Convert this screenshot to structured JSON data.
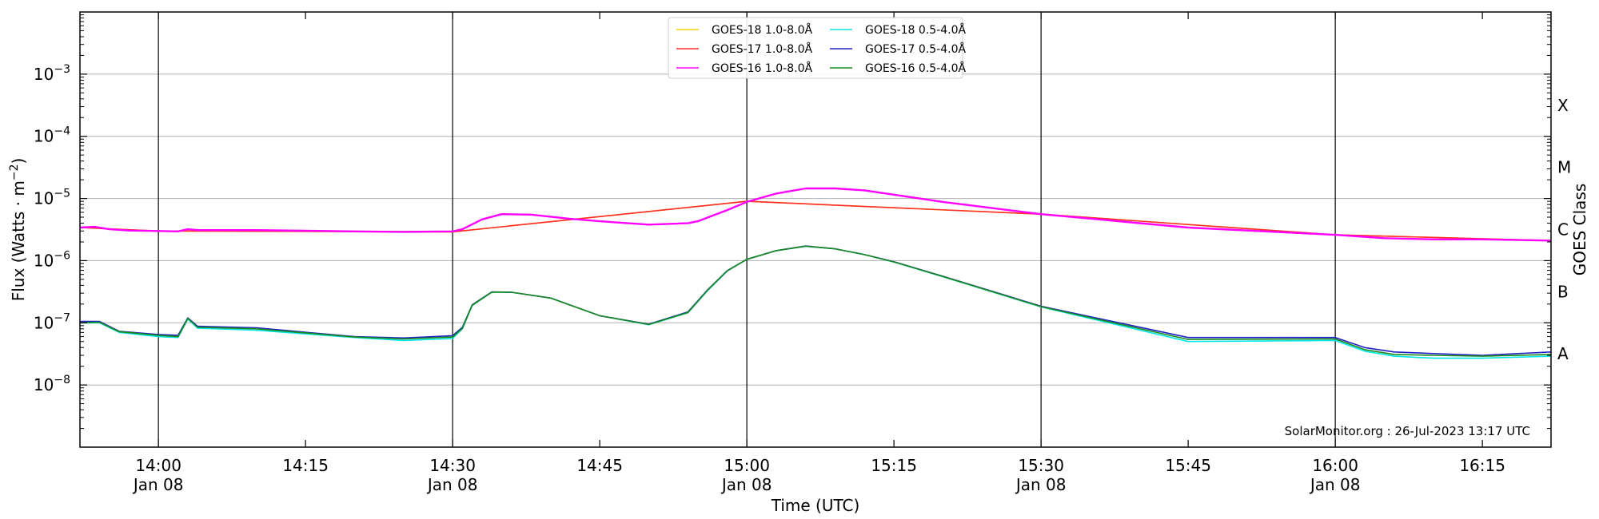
{
  "chart_data": {
    "type": "line",
    "title": "",
    "xlabel": "Time (UTC)",
    "ylabel": "Flux (Watts · m⁻²)",
    "y2label": "GOES Class",
    "yscale": "log",
    "ylim": [
      1e-09,
      0.01
    ],
    "xlim": [
      "13:52",
      "16:22"
    ],
    "grid": "horizontal",
    "legend_position": "top-center",
    "x_ticks": [
      {
        "t": "14:00",
        "label": "14:00",
        "sub": "Jan 08"
      },
      {
        "t": "14:15",
        "label": "14:15",
        "sub": ""
      },
      {
        "t": "14:30",
        "label": "14:30",
        "sub": "Jan 08"
      },
      {
        "t": "14:45",
        "label": "14:45",
        "sub": ""
      },
      {
        "t": "15:00",
        "label": "15:00",
        "sub": "Jan 08"
      },
      {
        "t": "15:15",
        "label": "15:15",
        "sub": ""
      },
      {
        "t": "15:30",
        "label": "15:30",
        "sub": "Jan 08"
      },
      {
        "t": "15:45",
        "label": "15:45",
        "sub": ""
      },
      {
        "t": "16:00",
        "label": "16:00",
        "sub": "Jan 08"
      },
      {
        "t": "16:15",
        "label": "16:15",
        "sub": ""
      }
    ],
    "y_ticks": [
      {
        "exp": -8,
        "label": "10"
      },
      {
        "exp": -7,
        "label": "10"
      },
      {
        "exp": -6,
        "label": "10"
      },
      {
        "exp": -5,
        "label": "10"
      },
      {
        "exp": -4,
        "label": "10"
      },
      {
        "exp": -3,
        "label": "10"
      }
    ],
    "vlines": [
      "14:00",
      "14:30",
      "15:00",
      "15:30",
      "16:00"
    ],
    "goes_classes": [
      {
        "label": "X",
        "exp": -3.5
      },
      {
        "label": "M",
        "exp": -4.5
      },
      {
        "label": "C",
        "exp": -5.5
      },
      {
        "label": "B",
        "exp": -6.5
      },
      {
        "label": "A",
        "exp": -7.5
      }
    ],
    "series": [
      {
        "name": "GOES-18 1.0-8.0Å",
        "color": "#ffd700",
        "x": [
          "13:52",
          "14:00",
          "14:30",
          "15:00",
          "15:30",
          "16:00",
          "16:22"
        ],
        "y": [
          3.4e-06,
          3e-06,
          2.9e-06,
          9e-06,
          5.6e-06,
          2.6e-06,
          2.1e-06
        ]
      },
      {
        "name": "GOES-17 1.0-8.0Å",
        "color": "#ff2a2a",
        "x": [
          "13:52",
          "14:00",
          "14:30",
          "15:00",
          "15:30",
          "16:00",
          "16:22"
        ],
        "y": [
          3.4e-06,
          3e-06,
          2.9e-06,
          9e-06,
          5.6e-06,
          2.6e-06,
          2.1e-06
        ]
      },
      {
        "name": "GOES-16 1.0-8.0Å",
        "color": "#ff00ff",
        "x": [
          "13:52",
          "13:53.5",
          "13:55",
          "13:57",
          "14:00",
          "14:02",
          "14:03",
          "14:04",
          "14:10",
          "14:20",
          "14:25",
          "14:30",
          "14:31",
          "14:33",
          "14:35",
          "14:38",
          "14:42",
          "14:45",
          "14:50",
          "14:54",
          "14:55",
          "14:58",
          "15:00",
          "15:03",
          "15:06",
          "15:09",
          "15:12",
          "15:15",
          "15:20",
          "15:30",
          "15:45",
          "16:00",
          "16:05",
          "16:10",
          "16:15",
          "16:22"
        ],
        "y": [
          3.4e-06,
          3.5e-06,
          3.2e-06,
          3.05e-06,
          3e-06,
          2.95e-06,
          3.2e-06,
          3.1e-06,
          3.1e-06,
          2.95e-06,
          2.9e-06,
          2.95e-06,
          3.2e-06,
          4.6e-06,
          5.6e-06,
          5.5e-06,
          4.7e-06,
          4.3e-06,
          3.8e-06,
          4e-06,
          4.3e-06,
          6.5e-06,
          8.8e-06,
          1.2e-05,
          1.45e-05,
          1.45e-05,
          1.35e-05,
          1.15e-05,
          8.8e-06,
          5.6e-06,
          3.4e-06,
          2.6e-06,
          2.3e-06,
          2.2e-06,
          2.2e-06,
          2.1e-06
        ]
      },
      {
        "name": "GOES-18 0.5-4.0Å",
        "color": "#00e5e5",
        "x": [
          "13:52",
          "13:54",
          "13:56",
          "14:00",
          "14:02",
          "14:03",
          "14:04",
          "14:10",
          "14:20",
          "14:25",
          "14:30",
          "14:31",
          "14:32",
          "14:34",
          "14:36",
          "14:40",
          "14:45",
          "14:50",
          "14:54",
          "14:56",
          "14:58",
          "15:00",
          "15:03",
          "15:06",
          "15:09",
          "15:12",
          "15:15",
          "15:20",
          "15:30",
          "15:45",
          "16:00",
          "16:03",
          "16:06",
          "16:10",
          "16:15",
          "16:22"
        ],
        "y": [
          1e-07,
          1e-07,
          7e-08,
          6e-08,
          5.8e-08,
          1.15e-07,
          8.2e-08,
          7.6e-08,
          5.8e-08,
          5.2e-08,
          5.6e-08,
          8e-08,
          1.9e-07,
          3.1e-07,
          3.1e-07,
          2.5e-07,
          1.3e-07,
          9.3e-08,
          1.45e-07,
          3.3e-07,
          6.8e-07,
          1.05e-06,
          1.45e-06,
          1.7e-06,
          1.55e-06,
          1.25e-06,
          9.5e-07,
          5.5e-07,
          1.8e-07,
          5e-08,
          5.2e-08,
          3.5e-08,
          2.9e-08,
          2.7e-08,
          2.7e-08,
          2.9e-08
        ]
      },
      {
        "name": "GOES-17 0.5-4.0Å",
        "color": "#2020c8",
        "x": [
          "13:52",
          "13:54",
          "13:56",
          "14:00",
          "14:02",
          "14:03",
          "14:04",
          "14:10",
          "14:20",
          "14:25",
          "14:30",
          "14:31",
          "14:32",
          "14:34",
          "14:36",
          "14:40",
          "14:45",
          "14:50",
          "14:54",
          "14:56",
          "14:58",
          "15:00",
          "15:03",
          "15:06",
          "15:09",
          "15:12",
          "15:15",
          "15:20",
          "15:30",
          "15:45",
          "16:00",
          "16:03",
          "16:06",
          "16:10",
          "16:15",
          "16:22"
        ],
        "y": [
          1.05e-07,
          1.05e-07,
          7.3e-08,
          6.5e-08,
          6.3e-08,
          1.2e-07,
          8.8e-08,
          8.3e-08,
          6e-08,
          5.7e-08,
          6.2e-08,
          8.5e-08,
          1.95e-07,
          3.15e-07,
          3.1e-07,
          2.5e-07,
          1.3e-07,
          9.5e-08,
          1.5e-07,
          3.4e-07,
          6.9e-07,
          1.05e-06,
          1.45e-06,
          1.72e-06,
          1.55e-06,
          1.25e-06,
          9.6e-07,
          5.6e-07,
          1.85e-07,
          5.8e-08,
          5.8e-08,
          4e-08,
          3.4e-08,
          3.2e-08,
          3e-08,
          3.4e-08
        ]
      },
      {
        "name": "GOES-16 0.5-4.0Å",
        "color": "#1a8a1a",
        "x": [
          "13:52",
          "13:54",
          "13:56",
          "14:00",
          "14:02",
          "14:03",
          "14:04",
          "14:10",
          "14:20",
          "14:25",
          "14:30",
          "14:31",
          "14:32",
          "14:34",
          "14:36",
          "14:40",
          "14:45",
          "14:50",
          "14:54",
          "14:56",
          "14:58",
          "15:00",
          "15:03",
          "15:06",
          "15:09",
          "15:12",
          "15:15",
          "15:20",
          "15:30",
          "15:45",
          "16:00",
          "16:03",
          "16:06",
          "16:10",
          "16:15",
          "16:22"
        ],
        "y": [
          1e-07,
          1.02e-07,
          7.2e-08,
          6.3e-08,
          6e-08,
          1.18e-07,
          8.5e-08,
          8e-08,
          5.9e-08,
          5.5e-08,
          5.9e-08,
          8.2e-08,
          1.92e-07,
          3.12e-07,
          3.1e-07,
          2.5e-07,
          1.3e-07,
          9.4e-08,
          1.47e-07,
          3.35e-07,
          6.85e-07,
          1.05e-06,
          1.45e-06,
          1.71e-06,
          1.55e-06,
          1.25e-06,
          9.55e-07,
          5.55e-07,
          1.82e-07,
          5.4e-08,
          5.5e-08,
          3.7e-08,
          3.1e-08,
          3e-08,
          2.9e-08,
          3.1e-08
        ]
      }
    ],
    "footer": "SolarMonitor.org : 26-Jul-2023 13:17 UTC"
  }
}
